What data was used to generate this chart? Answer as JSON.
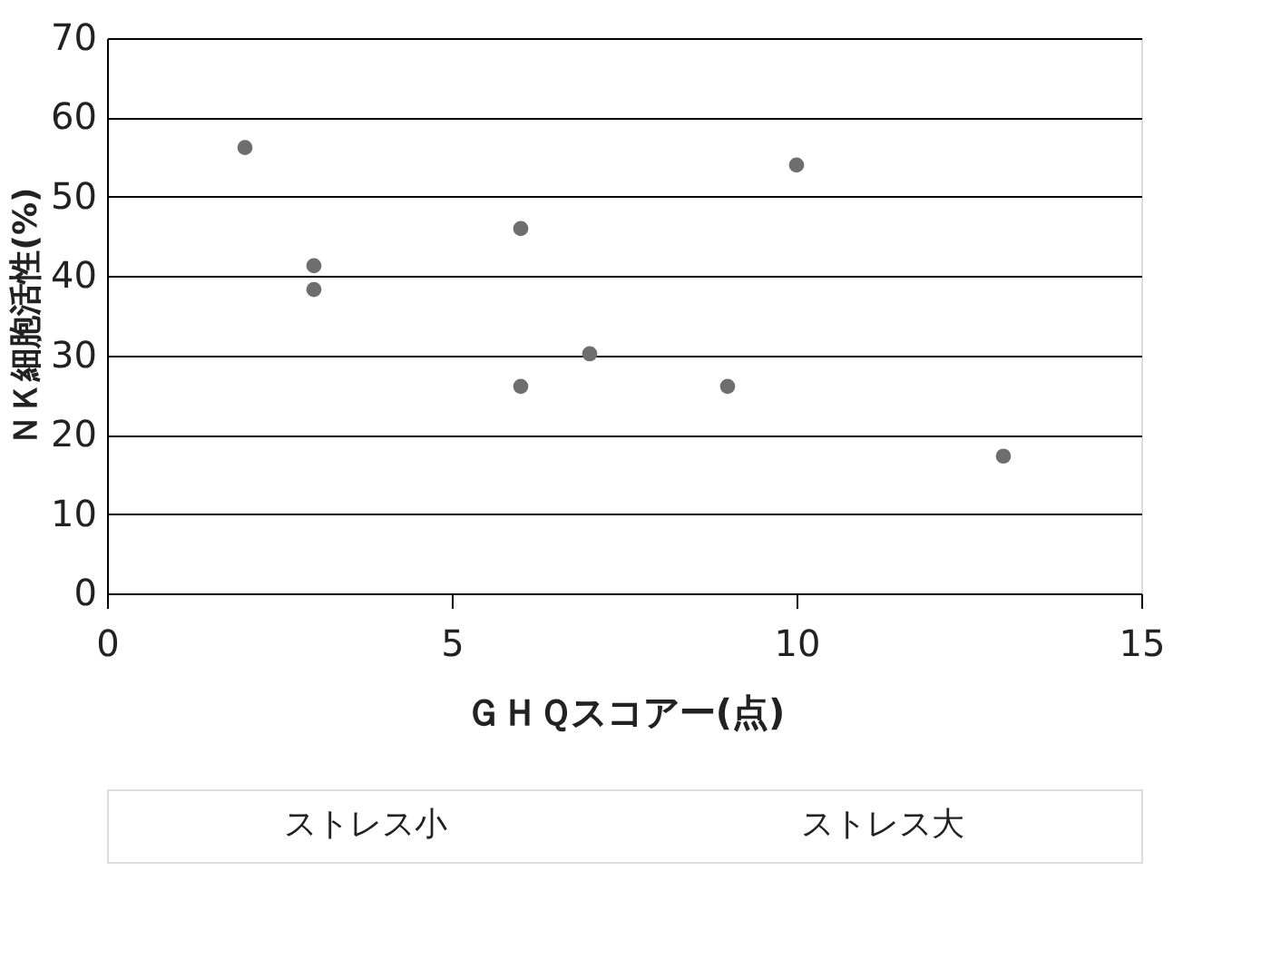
{
  "chart_data": {
    "type": "scatter",
    "xlabel": "ＧＨＱスコアー(点)",
    "ylabel": "ＮＫ細胞活性(%)",
    "x": [
      2,
      3,
      3,
      6,
      6,
      7,
      9,
      10,
      13
    ],
    "values": [
      56.2,
      41.3,
      38.3,
      46.0,
      26.1,
      30.2,
      26.1,
      54.0,
      17.3
    ],
    "color": "#6e6e6e",
    "marker": "circle",
    "xlim": [
      0,
      15
    ],
    "xticks": [
      0,
      5,
      10,
      15
    ],
    "ylim": [
      0,
      70
    ],
    "yticks": [
      0,
      10,
      20,
      30,
      40,
      50,
      60,
      70
    ],
    "grid": "y",
    "annotations": [
      "ストレス小",
      "ストレス大"
    ]
  }
}
